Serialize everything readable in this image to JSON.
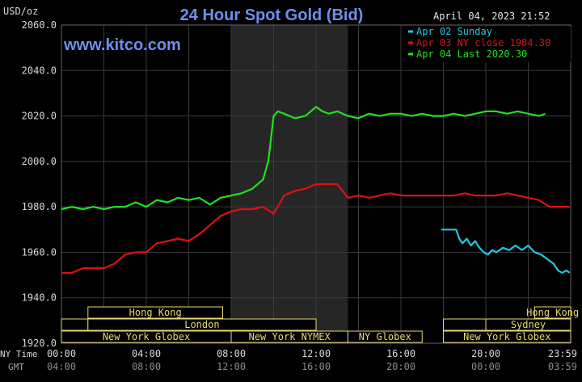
{
  "header": {
    "title": "24 Hour Spot Gold (Bid)",
    "unit": "USD/oz",
    "datetime": "April 04, 2023 21:52",
    "watermark": "www.kitco.com"
  },
  "legend": [
    {
      "label": "Apr 02 Sunday",
      "color": "#22c7e0"
    },
    {
      "label": "Apr 03 NY close 1984.30",
      "color": "#e01010"
    },
    {
      "label": "Apr 04 Last 2020.30",
      "color": "#22e022"
    }
  ],
  "sessions": {
    "row1": [
      {
        "label": "Hong Kong",
        "start": 1.25,
        "end": 7.6
      },
      {
        "label": "Hong Kong",
        "start": 22.3,
        "end": 24.0
      }
    ],
    "row2": [
      {
        "label": "",
        "start": 0.0,
        "end": 1.25
      },
      {
        "label": "London",
        "start": 1.25,
        "end": 12.0
      },
      {
        "label": "",
        "start": 18.0,
        "end": 22.0
      },
      {
        "label": "Sydney",
        "start": 20.0,
        "end": 24.0
      }
    ],
    "row3": [
      {
        "label": "New York Globex",
        "start": 0.0,
        "end": 8.0
      },
      {
        "label": "New York NYMEX",
        "start": 8.0,
        "end": 13.5
      },
      {
        "label": "NY Globex",
        "start": 13.5,
        "end": 17.0
      },
      {
        "label": "New York Globex",
        "start": 18.0,
        "end": 24.0
      }
    ]
  },
  "x_axis": {
    "ny_label": "NY Time",
    "gmt_label": "GMT",
    "ny_ticks": [
      "00:00",
      "04:00",
      "08:00",
      "12:00",
      "16:00",
      "20:00",
      "23:59"
    ],
    "gmt_ticks": [
      "04:00",
      "08:00",
      "12:00",
      "16:00",
      "20:00",
      "00:00",
      "03:59"
    ]
  },
  "colors": {
    "background": "#000000",
    "grid": "#3a3a3a",
    "axis_text": "#d8d8d8",
    "title": "#6f8ff0",
    "shade": "#262626",
    "session_border": "#e8d870"
  },
  "chart_data": {
    "type": "line",
    "title": "24 Hour Spot Gold (Bid)",
    "ylabel": "USD/oz",
    "xlabel": "",
    "xlim": [
      0,
      24
    ],
    "ylim": [
      1920,
      2060
    ],
    "yticks": [
      "1920.0",
      "1940.0",
      "1960.0",
      "1980.0",
      "2000.0",
      "2020.0",
      "2040.0",
      "2060.0"
    ],
    "grid": true,
    "legend_position": "top-right",
    "shaded_region": [
      8.0,
      13.5
    ],
    "series": [
      {
        "name": "Apr 02 Sunday",
        "color": "#22c7e0",
        "x": [
          17.9,
          18.2,
          18.6,
          18.75,
          18.9,
          19.1,
          19.3,
          19.5,
          19.7,
          19.9,
          20.1,
          20.3,
          20.5,
          20.8,
          21.1,
          21.4,
          21.7,
          22.0,
          22.3,
          22.6,
          22.9,
          23.2,
          23.4,
          23.6,
          23.8,
          23.95
        ],
        "y": [
          1970,
          1970,
          1970,
          1966,
          1964,
          1966,
          1963,
          1965,
          1962,
          1960,
          1959,
          1961,
          1960,
          1962,
          1961,
          1963,
          1961,
          1963,
          1960,
          1959,
          1957,
          1955,
          1952,
          1951,
          1952,
          1951
        ]
      },
      {
        "name": "Apr 03 NY close 1984.30",
        "color": "#e01010",
        "x": [
          0,
          0.5,
          1.0,
          1.5,
          2.0,
          2.5,
          3.0,
          3.5,
          4.0,
          4.5,
          5.0,
          5.5,
          6.0,
          6.5,
          7.0,
          7.5,
          8.0,
          8.5,
          9.0,
          9.5,
          10.0,
          10.5,
          11.0,
          11.5,
          12.0,
          12.5,
          13.0,
          13.5,
          14.0,
          14.5,
          15.0,
          15.5,
          16.0,
          16.5,
          17.0,
          17.5,
          18.0,
          18.5,
          19.0,
          19.5,
          20.0,
          20.5,
          21.0,
          21.5,
          22.0,
          22.5,
          23.0,
          23.5,
          23.95
        ],
        "y": [
          1951,
          1951,
          1953,
          1953,
          1953,
          1955,
          1959,
          1960,
          1960,
          1964,
          1965,
          1966,
          1965,
          1968,
          1972,
          1976,
          1978,
          1979,
          1979,
          1980,
          1977,
          1985,
          1987,
          1988,
          1990,
          1990,
          1990,
          1984,
          1985,
          1984,
          1985,
          1986,
          1985,
          1985,
          1985,
          1985,
          1985,
          1985,
          1986,
          1985,
          1985,
          1985,
          1986,
          1985,
          1984,
          1983,
          1980,
          1980,
          1980
        ]
      },
      {
        "name": "Apr 04 Last 2020.30",
        "color": "#22e022",
        "x": [
          0,
          0.5,
          1.0,
          1.5,
          2.0,
          2.5,
          3.0,
          3.5,
          4.0,
          4.5,
          5.0,
          5.5,
          6.0,
          6.5,
          7.0,
          7.5,
          8.0,
          8.5,
          9.0,
          9.5,
          9.75,
          10.0,
          10.2,
          10.5,
          11.0,
          11.5,
          12.0,
          12.3,
          12.6,
          13.0,
          13.5,
          14.0,
          14.5,
          15.0,
          15.5,
          16.0,
          16.5,
          17.0,
          17.5,
          18.0,
          18.5,
          19.0,
          19.5,
          20.0,
          20.5,
          21.0,
          21.5,
          22.0,
          22.5,
          22.8
        ],
        "y": [
          1979,
          1980,
          1979,
          1980,
          1979,
          1980,
          1980,
          1982,
          1980,
          1983,
          1982,
          1984,
          1983,
          1984,
          1981,
          1984,
          1985,
          1986,
          1988,
          1992,
          2000,
          2020,
          2022,
          2021,
          2019,
          2020,
          2024,
          2022,
          2021,
          2022,
          2020,
          2019,
          2021,
          2020,
          2021,
          2021,
          2020,
          2021,
          2020,
          2020,
          2021,
          2020,
          2021,
          2022,
          2022,
          2021,
          2022,
          2021,
          2020,
          2021
        ]
      }
    ]
  }
}
